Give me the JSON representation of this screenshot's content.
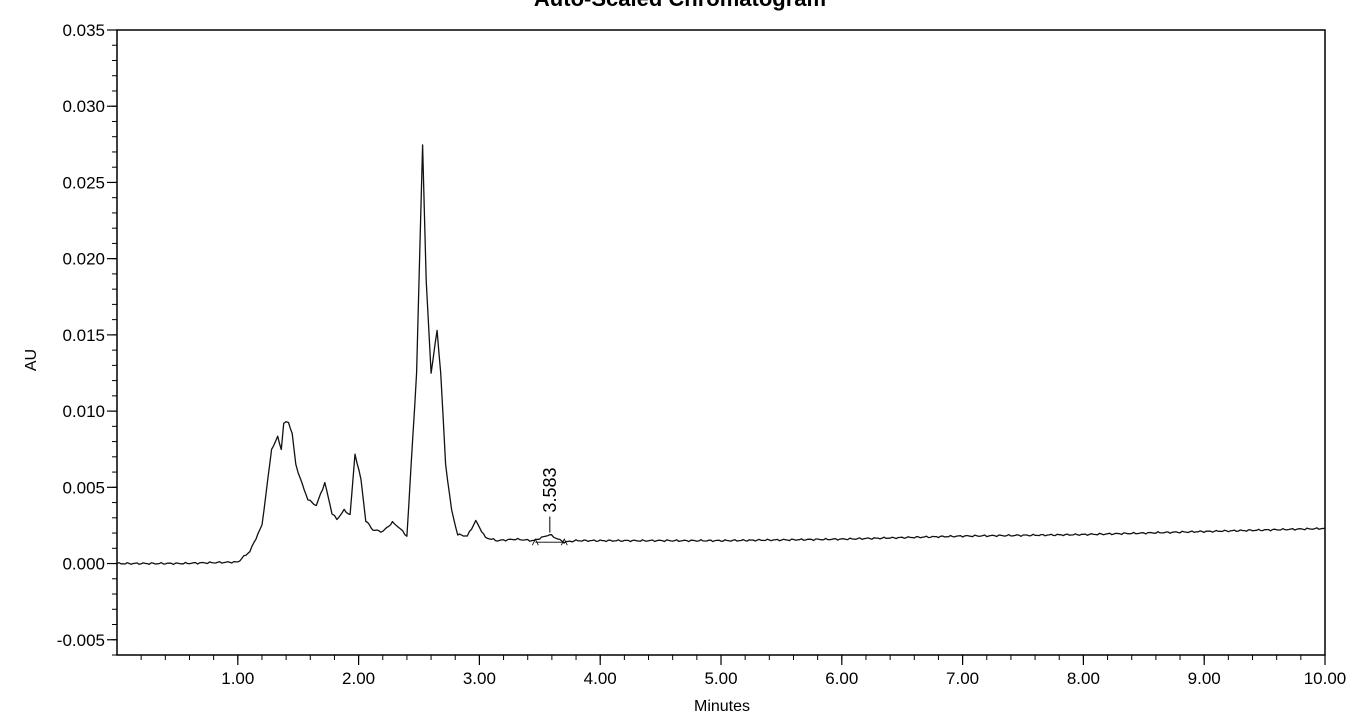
{
  "chart_data": {
    "type": "line",
    "title": "Auto-Scaled Chromatogram",
    "xlabel": "Minutes",
    "ylabel": "AU",
    "xlim": [
      0.0,
      10.0
    ],
    "ylim": [
      -0.006,
      0.035
    ],
    "x_ticks": [
      1.0,
      2.0,
      3.0,
      4.0,
      5.0,
      6.0,
      7.0,
      8.0,
      9.0,
      10.0
    ],
    "x_tick_labels": [
      "1.00",
      "2.00",
      "3.00",
      "4.00",
      "5.00",
      "6.00",
      "7.00",
      "8.00",
      "9.00",
      "10.00"
    ],
    "y_ticks": [
      -0.005,
      0.0,
      0.005,
      0.01,
      0.015,
      0.02,
      0.025,
      0.03,
      0.035
    ],
    "y_tick_labels": [
      "-0.005",
      "0.000",
      "0.005",
      "0.010",
      "0.015",
      "0.020",
      "0.025",
      "0.030",
      "0.035"
    ],
    "grid": false,
    "series": [
      {
        "x": [
          0.0,
          0.5,
          1.0,
          1.1,
          1.2,
          1.28,
          1.33,
          1.36,
          1.38,
          1.42,
          1.45,
          1.48,
          1.52,
          1.58,
          1.65,
          1.72,
          1.78,
          1.82,
          1.88,
          1.93,
          1.97,
          2.02,
          2.06,
          2.12,
          2.2,
          2.28,
          2.33,
          2.4,
          2.48,
          2.53,
          2.56,
          2.6,
          2.65,
          2.68,
          2.72,
          2.77,
          2.82,
          2.9,
          2.97,
          3.05,
          3.15,
          3.3,
          3.45,
          3.58,
          3.7,
          3.8,
          4.0,
          5.0,
          6.0,
          7.0,
          8.0,
          9.0,
          10.0
        ],
        "values": [
          0.0,
          0.0,
          0.0001,
          0.0008,
          0.0025,
          0.0075,
          0.0083,
          0.0075,
          0.0092,
          0.0093,
          0.0085,
          0.0065,
          0.0055,
          0.0042,
          0.0038,
          0.0053,
          0.0033,
          0.0029,
          0.0035,
          0.0032,
          0.0072,
          0.0055,
          0.0028,
          0.0022,
          0.0021,
          0.0027,
          0.0024,
          0.0018,
          0.0125,
          0.0275,
          0.0185,
          0.0125,
          0.0153,
          0.0125,
          0.0065,
          0.0035,
          0.0019,
          0.0018,
          0.0028,
          0.0017,
          0.0015,
          0.0016,
          0.0015,
          0.0019,
          0.0014,
          0.0015,
          0.0015,
          0.0015,
          0.0016,
          0.0018,
          0.0019,
          0.0021,
          0.0023
        ]
      }
    ],
    "annotations": [
      {
        "text": "3.583",
        "x": 3.583,
        "y": 0.0019
      }
    ]
  }
}
